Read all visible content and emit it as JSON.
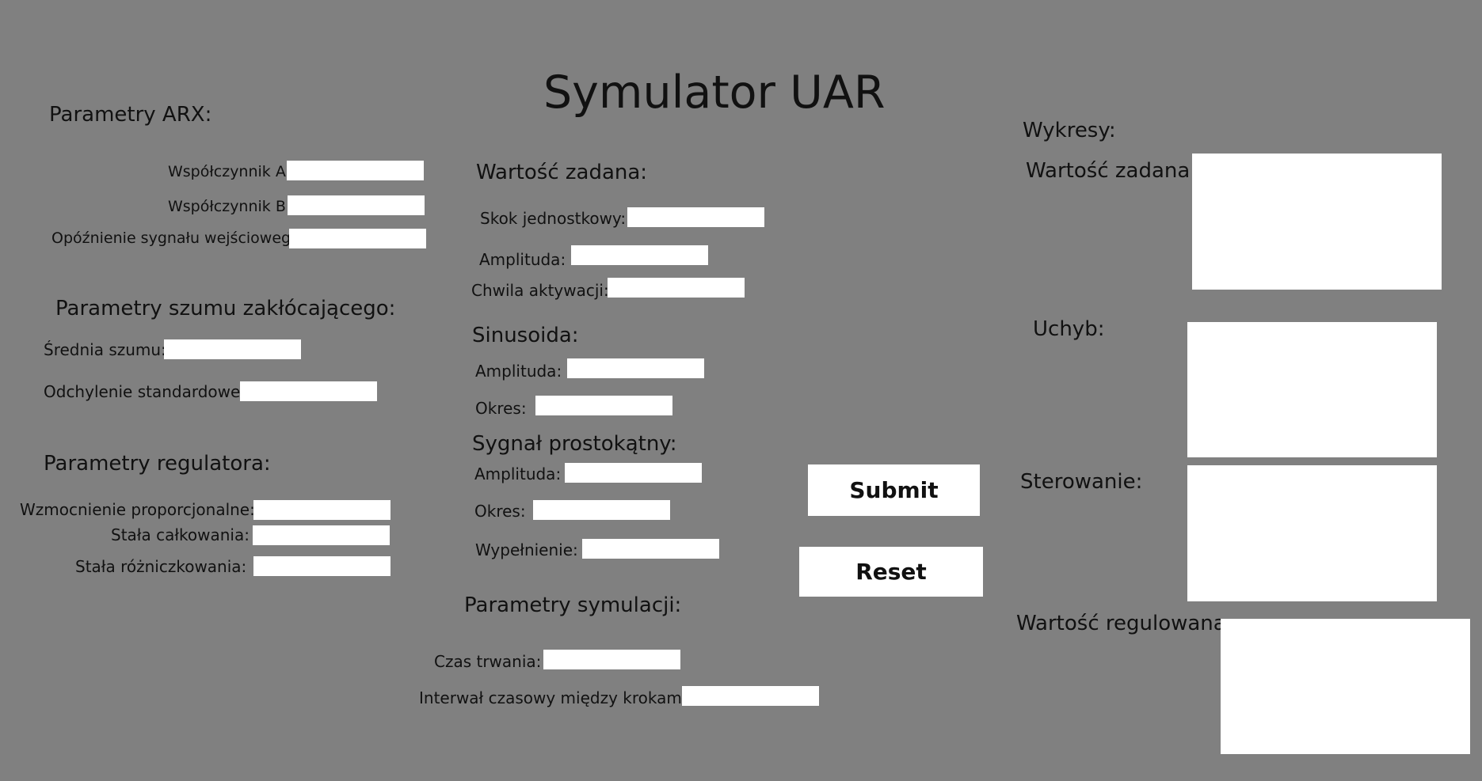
{
  "app": {
    "title": "Symulator UAR"
  },
  "arx": {
    "heading": "Parametry ARX:",
    "coef_a_label": "Współczynnik A:",
    "coef_b_label": "Współczynnik B:",
    "delay_label": "Opóźnienie sygnału wejściowego:",
    "coef_a_value": "",
    "coef_b_value": "",
    "delay_value": ""
  },
  "noise": {
    "heading": "Parametry szumu zakłócającego:",
    "mean_label": "Średnia szumu:",
    "std_label": "Odchylenie standardowe:",
    "mean_value": "",
    "std_value": ""
  },
  "regulator": {
    "heading": "Parametry regulatora:",
    "kp_label": "Wzmocnienie proporcjonalne:",
    "ti_label": "Stała całkowania:",
    "td_label": "Stała różniczkowania:",
    "kp_value": "",
    "ti_value": "",
    "td_value": ""
  },
  "setpoint": {
    "heading": "Wartość zadana:",
    "step_label": "Skok jednostkowy:",
    "amplitude_label": "Amplituda:",
    "activation_label": "Chwila aktywacji:",
    "step_value": "",
    "amplitude_value": "",
    "activation_value": ""
  },
  "sine": {
    "heading": "Sinusoida:",
    "amplitude_label": "Amplituda:",
    "period_label": "Okres:",
    "amplitude_value": "",
    "period_value": ""
  },
  "square": {
    "heading": "Sygnał prostokątny:",
    "amplitude_label": "Amplituda:",
    "period_label": "Okres:",
    "fill_label": "Wypełnienie:",
    "amplitude_value": "",
    "period_value": "",
    "fill_value": ""
  },
  "simulation": {
    "heading": "Parametry symulacji:",
    "duration_label": "Czas trwania:",
    "interval_label": "Interwał czasowy między krokami:",
    "duration_value": "",
    "interval_value": ""
  },
  "actions": {
    "submit_label": "Submit",
    "reset_label": "Reset"
  },
  "plots": {
    "heading": "Wykresy:",
    "setpoint_label": "Wartość  zadana:",
    "error_label": "Uchyb:",
    "control_label": "Sterowanie:",
    "output_label": "Wartość regulowana:"
  }
}
